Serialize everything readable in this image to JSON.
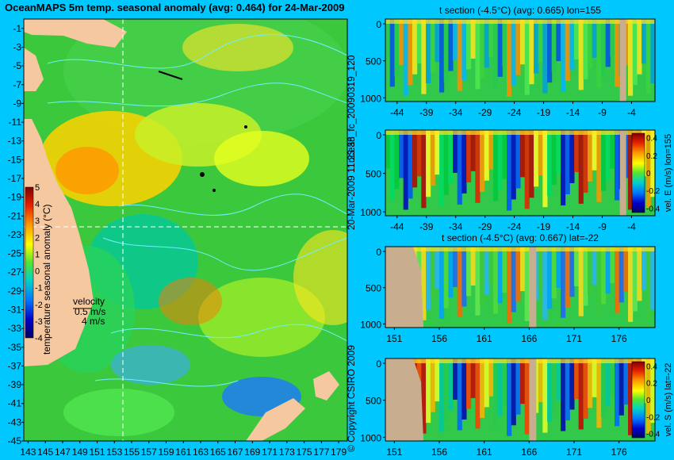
{
  "main_title": "OceanMAPS 5m temp. seasonal anomaly (avg: 0.464) for 24-Mar-2009",
  "map": {
    "y_ticks": [
      "-1",
      "-3",
      "-5",
      "-7",
      "-9",
      "-11",
      "-13",
      "-15",
      "-17",
      "-19",
      "-21",
      "-23",
      "-25",
      "-27",
      "-29",
      "-31",
      "-33",
      "-35",
      "-37",
      "-39",
      "-41",
      "-43",
      "-45"
    ],
    "x_ticks": [
      "143",
      "145",
      "147",
      "149",
      "151",
      "153",
      "155",
      "157",
      "159",
      "161",
      "163",
      "165",
      "167",
      "169",
      "171",
      "173",
      "175",
      "177",
      "179"
    ],
    "velocity_label": "velocity",
    "velocity_value": "0.5 m/s",
    "velocity_value2": "4 m/s",
    "colorbar_label": "temperature seasonal anomaly (°C)",
    "colorbar_ticks": [
      "5",
      "4",
      "3",
      "2",
      "1",
      "0",
      "-1",
      "-2",
      "-3",
      "-4"
    ]
  },
  "side_text": {
    "run_id": "ocean_fc_20090319_120",
    "run_time": "20-Mar-2009 11:23:38",
    "copyright": "© Copyright CSIRO 2009"
  },
  "panels": [
    {
      "title": "t section (-4.5°C) (avg: 0.665) lon=155",
      "x_ticks": [
        "-44",
        "-39",
        "-34",
        "-29",
        "-24",
        "-19",
        "-14",
        "-9",
        "-4"
      ],
      "y_ticks": [
        "0",
        "500",
        "1000"
      ]
    },
    {
      "title": "",
      "x_ticks": [
        "-44",
        "-39",
        "-34",
        "-29",
        "-24",
        "-19",
        "-14",
        "-9",
        "-4"
      ],
      "y_ticks": [
        "0",
        "500",
        "1000"
      ],
      "colorbar_label": "vel. E (m/s) lon=155",
      "colorbar_ticks": [
        "0.4",
        "0.2",
        "0",
        "-0.2",
        "-0.4"
      ]
    },
    {
      "title": "t section (-4.5°C) (avg: 0.667) lat=-22",
      "x_ticks": [
        "151",
        "156",
        "161",
        "166",
        "171",
        "176"
      ],
      "y_ticks": [
        "0",
        "500",
        "1000"
      ]
    },
    {
      "title": "",
      "x_ticks": [
        "151",
        "156",
        "161",
        "166",
        "171",
        "176"
      ],
      "y_ticks": [
        "0",
        "500",
        "1000"
      ],
      "colorbar_label": "vel. S (m/s) lat=-22",
      "colorbar_ticks": [
        "0.4",
        "0.2",
        "0",
        "-0.2",
        "-0.4"
      ]
    }
  ],
  "chart_data": [
    {
      "type": "heatmap",
      "title": "OceanMAPS 5m temp. seasonal anomaly (avg: 0.464) for 24-Mar-2009",
      "xlim": [
        143,
        180
      ],
      "ylim": [
        -45,
        0
      ],
      "colorbar_range": [
        -4,
        5
      ],
      "colorbar_label": "temperature seasonal anomaly (°C)"
    },
    {
      "type": "heatmap",
      "title": "t section (-4.5°C) (avg: 0.665) lon=155",
      "xlim": [
        -46,
        0
      ],
      "ylim": [
        1050,
        0
      ]
    },
    {
      "type": "heatmap",
      "title": "",
      "xlim": [
        -46,
        0
      ],
      "ylim": [
        1050,
        0
      ],
      "colorbar_range": [
        -0.4,
        0.4
      ],
      "colorbar_label": "vel. E (m/s) lon=155"
    },
    {
      "type": "heatmap",
      "title": "t section (-4.5°C) (avg: 0.667) lat=-22",
      "xlim": [
        150,
        180
      ],
      "ylim": [
        1050,
        0
      ]
    },
    {
      "type": "heatmap",
      "title": "",
      "xlim": [
        150,
        180
      ],
      "ylim": [
        1050,
        0
      ],
      "colorbar_range": [
        -0.4,
        0.4
      ],
      "colorbar_label": "vel. S (m/s) lat=-22"
    }
  ],
  "colors": {
    "background": "#00c8ff",
    "land": "#dcb28c",
    "section_gap": "#c8ae8e",
    "contour": "#6ef0ff",
    "marker_line": "#ffffff"
  }
}
